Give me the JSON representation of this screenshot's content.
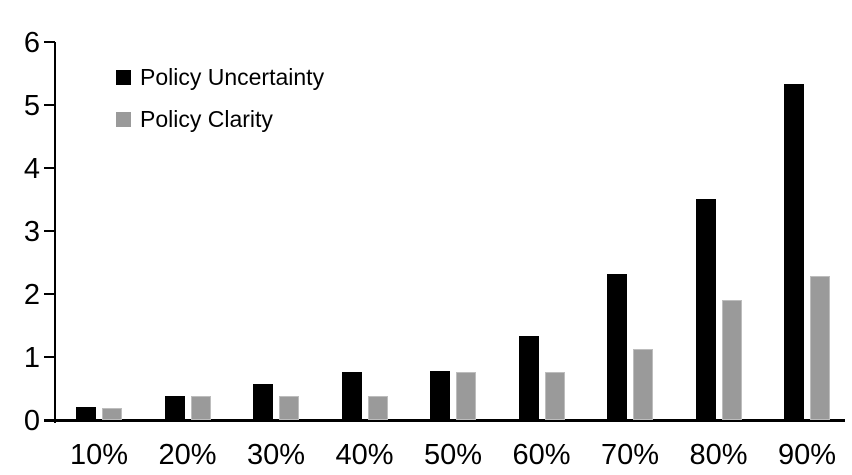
{
  "chart_data": {
    "type": "bar",
    "title": "",
    "xlabel": "",
    "ylabel": "",
    "categories": [
      "10%",
      "20%",
      "30%",
      "40%",
      "50%",
      "60%",
      "70%",
      "80%",
      "90%"
    ],
    "series": [
      {
        "name": "Policy Uncertainty",
        "color": "#000000",
        "values": [
          0.2,
          0.38,
          0.57,
          0.76,
          0.77,
          1.33,
          2.31,
          3.5,
          5.33
        ]
      },
      {
        "name": "Policy Clarity",
        "color": "#9A9A9A",
        "values": [
          0.19,
          0.38,
          0.38,
          0.38,
          0.76,
          0.76,
          1.13,
          1.9,
          2.29
        ]
      }
    ],
    "ylim": [
      0,
      6
    ],
    "y_tick_labels": [
      "0",
      "1",
      "2",
      "3",
      "4",
      "5",
      "6"
    ],
    "grid": false,
    "legend_position": "top-left",
    "axis_color": "#000000"
  }
}
